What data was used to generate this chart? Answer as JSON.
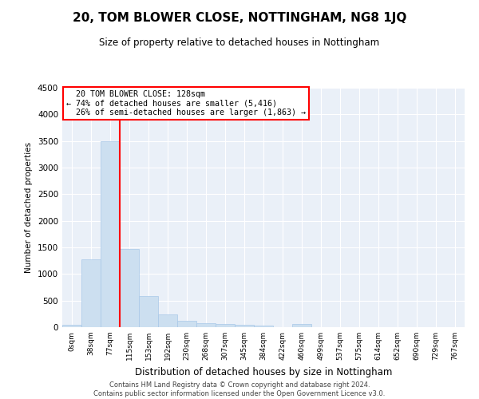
{
  "title": "20, TOM BLOWER CLOSE, NOTTINGHAM, NG8 1JQ",
  "subtitle": "Size of property relative to detached houses in Nottingham",
  "xlabel": "Distribution of detached houses by size in Nottingham",
  "ylabel": "Number of detached properties",
  "bar_color": "#ccdff0",
  "bar_edgecolor": "#a8c8e8",
  "background_color": "#eaf0f8",
  "categories": [
    "0sqm",
    "38sqm",
    "77sqm",
    "115sqm",
    "153sqm",
    "192sqm",
    "230sqm",
    "268sqm",
    "307sqm",
    "345sqm",
    "384sqm",
    "422sqm",
    "460sqm",
    "499sqm",
    "537sqm",
    "575sqm",
    "614sqm",
    "652sqm",
    "690sqm",
    "729sqm",
    "767sqm"
  ],
  "values": [
    40,
    1280,
    3500,
    1470,
    580,
    240,
    115,
    80,
    55,
    40,
    35,
    0,
    55,
    0,
    0,
    0,
    0,
    0,
    0,
    0,
    0
  ],
  "ylim": [
    0,
    4500
  ],
  "yticks": [
    0,
    500,
    1000,
    1500,
    2000,
    2500,
    3000,
    3500,
    4000,
    4500
  ],
  "property_label": "20 TOM BLOWER CLOSE: 128sqm",
  "pct_smaller": 74,
  "n_smaller": 5416,
  "pct_larger": 26,
  "n_larger": 1863,
  "vline_x": 2.5,
  "footer_line1": "Contains HM Land Registry data © Crown copyright and database right 2024.",
  "footer_line2": "Contains public sector information licensed under the Open Government Licence v3.0."
}
